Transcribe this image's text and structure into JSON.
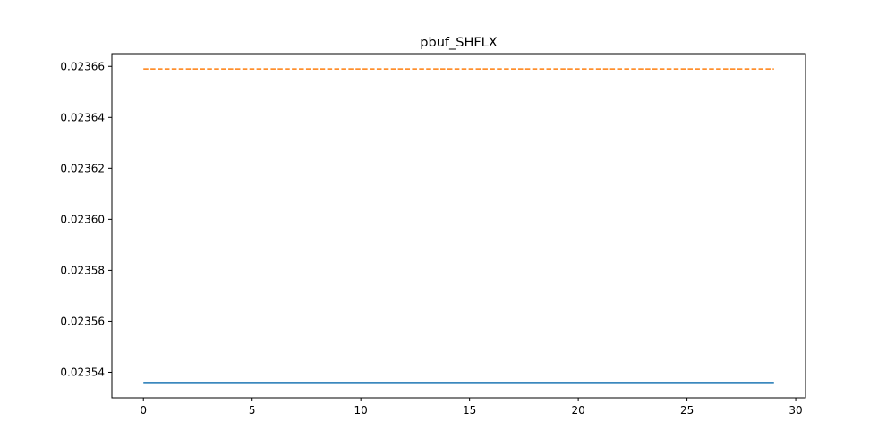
{
  "chart_data": {
    "type": "line",
    "title": "pbuf_SHFLX",
    "xlabel": "",
    "ylabel": "",
    "xlim": [
      -1.45,
      30.45
    ],
    "ylim": [
      0.02353,
      0.023665
    ],
    "xticks": [
      0,
      5,
      10,
      15,
      20,
      25,
      30
    ],
    "xtick_labels": [
      "0",
      "5",
      "10",
      "15",
      "20",
      "25",
      "30"
    ],
    "yticks": [
      0.02354,
      0.02356,
      0.02358,
      0.0236,
      0.02362,
      0.02364,
      0.02366
    ],
    "ytick_labels": [
      "0.02354",
      "0.02356",
      "0.02358",
      "0.02360",
      "0.02362",
      "0.02364",
      "0.02366]"
    ],
    "grid": false,
    "series": [
      {
        "color": "#1f77b4",
        "linestyle": "solid",
        "x": [
          0,
          29
        ],
        "y": [
          0.023536,
          0.023536
        ]
      },
      {
        "color": "#ff7f0e",
        "linestyle": "dashed",
        "x": [
          0,
          29
        ],
        "y": [
          0.023659,
          0.023659
        ]
      }
    ]
  }
}
